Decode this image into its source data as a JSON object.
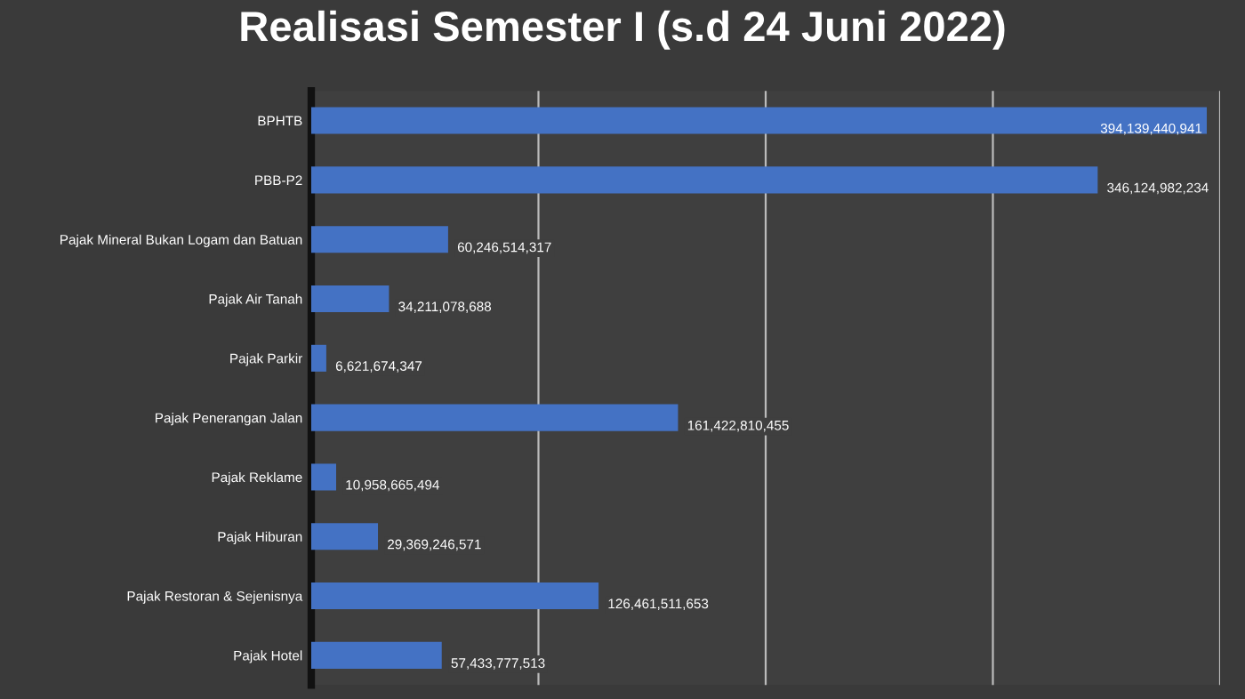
{
  "chart_data": {
    "type": "bar",
    "orientation": "horizontal",
    "title": "Realisasi Semester I (s.d 24 Juni 2022)",
    "categories": [
      "BPHTB",
      "PBB-P2",
      "Pajak Mineral Bukan Logam dan Batuan",
      "Pajak Air Tanah",
      "Pajak Parkir",
      "Pajak Penerangan Jalan",
      "Pajak Reklame",
      "Pajak Hiburan",
      "Pajak Restoran & Sejenisnya",
      "Pajak Hotel"
    ],
    "values": [
      394139440941,
      346124982234,
      60246514317,
      34211078688,
      6621674347,
      161422810455,
      10958665494,
      29369246571,
      126461511653,
      57433777513
    ],
    "value_labels": [
      "394,139,440,941",
      "346,124,982,234",
      "60,246,514,317",
      "34,211,078,688",
      "6,621,674,347",
      "161,422,810,455",
      "10,958,665,494",
      "29,369,246,571",
      "126,461,511,653",
      "57,433,777,513"
    ],
    "color": "#4472c4",
    "xlim": [
      0,
      400000000000
    ],
    "xticks": [
      {
        "value": 0,
        "label": null
      },
      {
        "value": 100000000000,
        "label": null
      },
      {
        "value": 200000000000,
        "label": null
      },
      {
        "value": 300000000000,
        "label": null
      },
      {
        "value": 400000000000,
        "label": null
      }
    ],
    "grid": "x",
    "tick_labels": "y"
  }
}
